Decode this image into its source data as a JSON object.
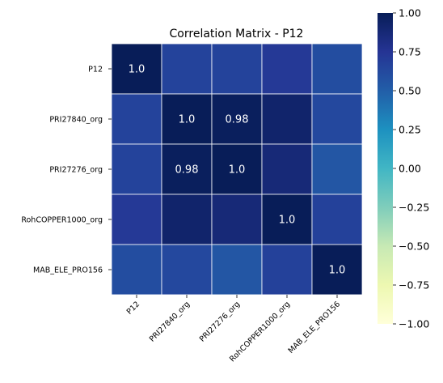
{
  "chart_data": {
    "type": "heatmap",
    "title": "Correlation Matrix - P12",
    "variables": [
      "P12",
      "PRI27840_org",
      "PRI27276_org",
      "RohCOPPER1000_org",
      "MAB_ELE_PRO156"
    ],
    "matrix": [
      [
        1.0,
        0.66,
        0.66,
        0.72,
        0.6
      ],
      [
        0.66,
        1.0,
        0.98,
        0.92,
        0.63
      ],
      [
        0.66,
        0.98,
        1.0,
        0.87,
        0.55
      ],
      [
        0.72,
        0.92,
        0.87,
        1.0,
        0.67
      ],
      [
        0.6,
        0.63,
        0.55,
        0.67,
        1.0
      ]
    ],
    "annotations": [
      {
        "row": 0,
        "col": 0,
        "text": "1.0"
      },
      {
        "row": 1,
        "col": 1,
        "text": "1.0"
      },
      {
        "row": 1,
        "col": 2,
        "text": "0.98"
      },
      {
        "row": 2,
        "col": 1,
        "text": "0.98"
      },
      {
        "row": 2,
        "col": 2,
        "text": "1.0"
      },
      {
        "row": 3,
        "col": 3,
        "text": "1.0"
      },
      {
        "row": 4,
        "col": 4,
        "text": "1.0"
      }
    ],
    "colormap": "YlGnBu",
    "colormap_stops": [
      "#ffffd9",
      "#edf8b1",
      "#c7e9b4",
      "#7fcdbb",
      "#41b6c4",
      "#1d91c0",
      "#225ea8",
      "#253494",
      "#081d58"
    ],
    "vmin": -1.0,
    "vmax": 1.0,
    "colorbar_ticks": [
      {
        "value": 1.0,
        "label": "1.00"
      },
      {
        "value": 0.75,
        "label": "0.75"
      },
      {
        "value": 0.5,
        "label": "0.50"
      },
      {
        "value": 0.25,
        "label": "0.25"
      },
      {
        "value": 0.0,
        "label": "0.00"
      },
      {
        "value": -0.25,
        "label": "−0.25"
      },
      {
        "value": -0.5,
        "label": "−0.50"
      },
      {
        "value": -0.75,
        "label": "−0.75"
      },
      {
        "value": -1.0,
        "label": "−1.00"
      }
    ],
    "grid_line_color": "#ffffff",
    "legend": "right"
  }
}
